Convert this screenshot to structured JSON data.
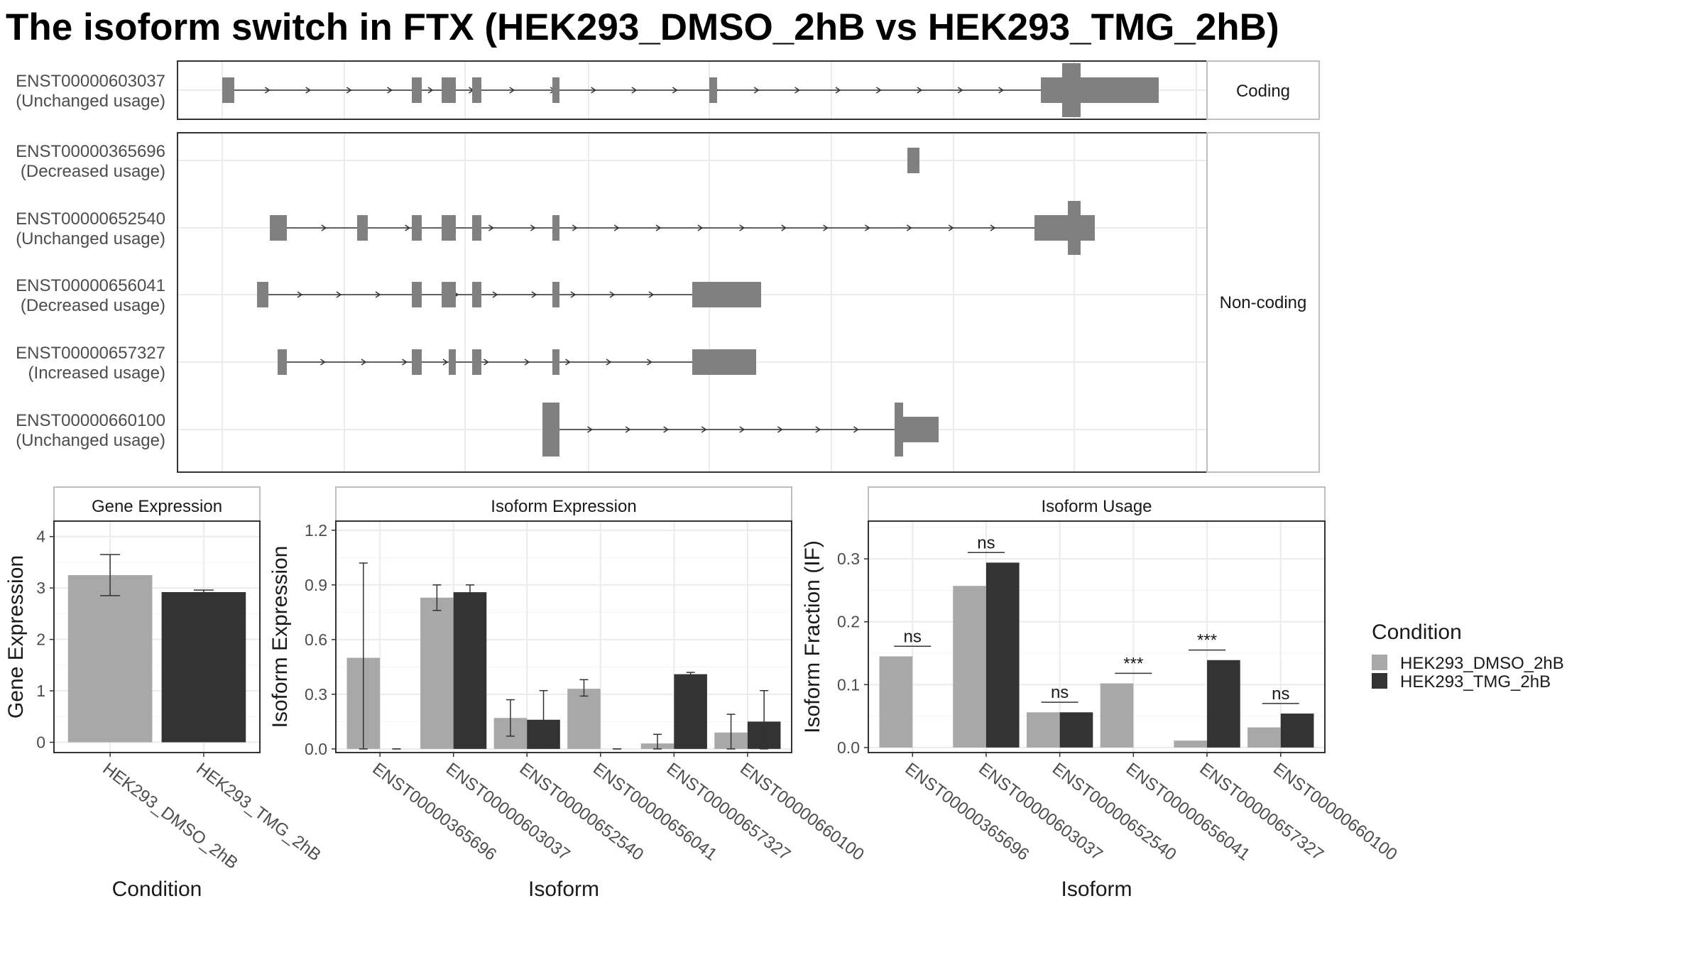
{
  "title": "The isoform switch in FTX (HEK293_DMSO_2hB vs HEK293_TMG_2hB)",
  "colors": {
    "dmso": "#a8a8a8",
    "tmg": "#333333",
    "feature": "#808080",
    "panel_border": "#333333",
    "strip_border": "#bfbfbf",
    "grid": "#ebebeb"
  },
  "conditions": [
    "HEK293_DMSO_2hB",
    "HEK293_TMG_2hB"
  ],
  "legend": {
    "title": "Condition",
    "items": [
      {
        "label": "HEK293_DMSO_2hB",
        "color": "#a8a8a8"
      },
      {
        "label": "HEK293_TMG_2hB",
        "color": "#333333"
      }
    ]
  },
  "chart_data": [
    {
      "type": "gene-structure",
      "strips": [
        "Coding",
        "Non-coding"
      ],
      "transcripts": [
        {
          "id": "ENST00000603037",
          "usage": "(Unchanged usage)",
          "group": "Coding"
        },
        {
          "id": "ENST00000365696",
          "usage": "(Decreased usage)",
          "group": "Non-coding"
        },
        {
          "id": "ENST00000652540",
          "usage": "(Unchanged usage)",
          "group": "Non-coding"
        },
        {
          "id": "ENST00000656041",
          "usage": "(Decreased usage)",
          "group": "Non-coding"
        },
        {
          "id": "ENST00000657327",
          "usage": "(Increased usage)",
          "group": "Non-coding"
        },
        {
          "id": "ENST00000660100",
          "usage": "(Unchanged usage)",
          "group": "Non-coding"
        }
      ]
    },
    {
      "type": "bar",
      "strip_title": "Gene Expression",
      "xlabel": "Condition",
      "ylabel": "Gene Expression",
      "ylim": [
        -0.2,
        4.3
      ],
      "yticks": [
        "0",
        "1",
        "2",
        "3",
        "4"
      ],
      "grid": true,
      "categories": [
        "HEK293_DMSO_2hB",
        "HEK293_TMG_2hB"
      ],
      "values": [
        3.25,
        2.92
      ],
      "errors": [
        [
          2.85,
          3.65
        ],
        [
          2.88,
          2.96
        ]
      ]
    },
    {
      "type": "bar",
      "strip_title": "Isoform Expression",
      "xlabel": "Isoform",
      "ylabel": "Isoform Expression",
      "ylim": [
        -0.02,
        1.25
      ],
      "yticks": [
        "0.0",
        "0.3",
        "0.6",
        "0.9",
        "1.2"
      ],
      "grid": true,
      "categories": [
        "ENST00000365696",
        "ENST00000603037",
        "ENST00000652540",
        "ENST00000656041",
        "ENST00000657327",
        "ENST00000660100"
      ],
      "series": [
        {
          "name": "HEK293_DMSO_2hB",
          "values": [
            0.5,
            0.83,
            0.17,
            0.33,
            0.03,
            0.09
          ],
          "errors": [
            [
              0.0,
              1.02
            ],
            [
              0.76,
              0.9
            ],
            [
              0.07,
              0.27
            ],
            [
              0.29,
              0.38
            ],
            [
              0.0,
              0.08
            ],
            [
              0.0,
              0.19
            ]
          ]
        },
        {
          "name": "HEK293_TMG_2hB",
          "values": [
            0.0,
            0.86,
            0.16,
            0.0,
            0.41,
            0.15
          ],
          "errors": [
            [
              0.0,
              0.0
            ],
            [
              0.82,
              0.9
            ],
            [
              0.01,
              0.32
            ],
            [
              0.0,
              0.0
            ],
            [
              0.39,
              0.42
            ],
            [
              0.0,
              0.32
            ]
          ]
        }
      ]
    },
    {
      "type": "bar",
      "strip_title": "Isoform Usage",
      "xlabel": "Isoform",
      "ylabel": "Isoform Fraction (IF)",
      "ylim": [
        -0.008,
        0.36
      ],
      "yticks": [
        "0.0",
        "0.1",
        "0.2",
        "0.3"
      ],
      "grid": true,
      "categories": [
        "ENST00000365696",
        "ENST00000603037",
        "ENST00000652540",
        "ENST00000656041",
        "ENST00000657327",
        "ENST00000660100"
      ],
      "series": [
        {
          "name": "HEK293_DMSO_2hB",
          "values": [
            0.145,
            0.257,
            0.056,
            0.102,
            0.011,
            0.032
          ]
        },
        {
          "name": "HEK293_TMG_2hB",
          "values": [
            0.0,
            0.294,
            0.056,
            0.0,
            0.139,
            0.054
          ]
        }
      ],
      "annotations": [
        "ns",
        "ns",
        "ns",
        "***",
        "***",
        "ns"
      ],
      "annotation_y": [
        0.161,
        0.31,
        0.072,
        0.118,
        0.155,
        0.07
      ]
    }
  ]
}
